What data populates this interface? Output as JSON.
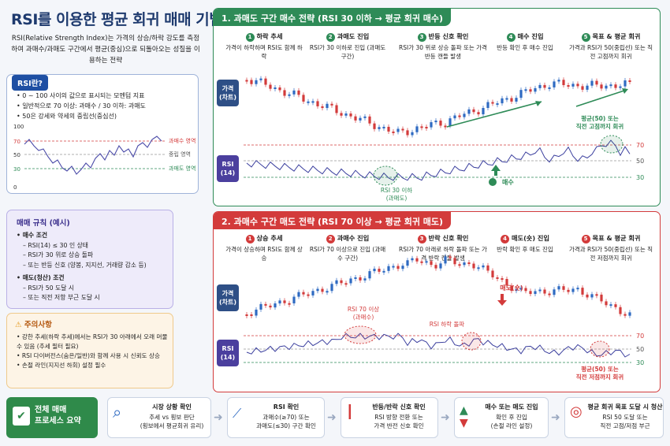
{
  "title": "RSI를 이용한 평균 회귀 매매 기법",
  "subtitle": "RSI(Relative Strength Index)는 가격의 상승/하락 강도를 측정하여 과매수/과매도 구간에서 평균(중심)으로 되돌아오는 성질을 이용하는 전략",
  "rsi_info": {
    "tag": "RSI란?",
    "bullets": [
      "0 ~ 100 사이의 값으로 표시되는 모멘텀 지표",
      "일반적으로 70 이상: 과매수 / 30 이하: 과매도",
      "50은 강세와 약세의 중립선(중심선)"
    ],
    "ticks": [
      "100",
      "70",
      "50",
      "30",
      "0"
    ],
    "zones": [
      "과매수 영역",
      "중립 영역",
      "과매도 영역"
    ]
  },
  "rules": {
    "title": "매매 규칙 (예시)",
    "buy_title": "매수 조건",
    "buy": [
      "RSI(14) ≤ 30 인 상태",
      "RSI가 30 위로 상승 돌파",
      "또는 반등 신호 (양봉, 지지선, 거래량 감소 등)"
    ],
    "sell_title": "매도(청산) 조건",
    "sell": [
      "RSI가 50 도달 시",
      "또는 직전 저항 부근 도달 시"
    ]
  },
  "warnings": {
    "title": "주의사항",
    "items": [
      "강한 추세(하락 추세)에서는 RSI가 30 아래에서 오래 머물 수 있음 (추세 필터 필요)",
      "RSI 다이버전스(숨은/일반)와 함께 사용 시 신뢰도 상승",
      "손절 라인(지지선 하회) 설정 필수"
    ]
  },
  "panel1": {
    "title": "1. 과매도 구간 매수 전략 (RSI 30 이하 → 평균 회귀 매수)",
    "steps": [
      {
        "n": "1",
        "h": "하락 추세",
        "t": "가격이 하락하며 RSI도 함께 하락"
      },
      {
        "n": "2",
        "h": "과매도 진입",
        "t": "RSI가 30 이하로 진입 (과매도 구간)"
      },
      {
        "n": "3",
        "h": "반등 신호 확인",
        "t": "RSI가 30 위로 상승 돌파 또는 가격 반등 캔들 발생"
      },
      {
        "n": "4",
        "h": "매수 진입",
        "t": "반등 확인 후 매수 진입"
      },
      {
        "n": "5",
        "h": "목표 & 평균 회귀",
        "t": "가격과 RSI가 50(중립선) 또는 직전 고점까지 회귀"
      }
    ],
    "price_label": "가격\n(차트)",
    "rsi_label": "RSI\n(14)",
    "levels": [
      "70",
      "50",
      "30"
    ],
    "ann_rsi": "RSI 30 이하\n(과매도)",
    "ann_buy": "매수",
    "ann_target": "평균(50) 또는\n직전 고점까지 회귀"
  },
  "panel2": {
    "title": "2. 과매수 구간 매도 전략 (RSI 70 이상 → 평균 회귀 매도)",
    "steps": [
      {
        "n": "1",
        "h": "상승 추세",
        "t": "가격이 상승하며 RSI도 함께 상승"
      },
      {
        "n": "2",
        "h": "과매수 진입",
        "t": "RSI가 70 이상으로 진입 (과매수 구간)"
      },
      {
        "n": "3",
        "h": "반락 신호 확인",
        "t": "RSI가 70 아래로 하락 돌파 또는 가격 반락 캔들 발생"
      },
      {
        "n": "4",
        "h": "매도(숏) 진입",
        "t": "반락 확인 후 매도 진입"
      },
      {
        "n": "5",
        "h": "목표 & 평균 회귀",
        "t": "가격과 RSI가 50(중립선) 또는 직전 저점까지 회귀"
      }
    ],
    "price_label": "가격\n(차트)",
    "rsi_label": "RSI\n(14)",
    "levels": [
      "70",
      "50",
      "30"
    ],
    "ann_rsi": "RSI 70 이상\n(과매수)",
    "ann_break": "RSI 하락 돌파",
    "ann_sell": "매도(숏)",
    "ann_target": "평균(50) 또는\n직전 저점까지 회귀"
  },
  "summary": {
    "head": "전체 매매\n프로세스 요약",
    "cards": [
      {
        "h": "시장 상황 확인",
        "t": "추세 vs 횡보 판단\n(횡보에서 평균회귀 유리)"
      },
      {
        "h": "RSI 확인",
        "t": "과매수(≥70) 또는\n과매도(≤30) 구간 확인"
      },
      {
        "h": "반등/반락 신호 확인",
        "t": "RSI 방향 전환 또는\n가격 반전 신호 확인"
      },
      {
        "h": "매수 또는 매도 진입",
        "t": "확인 후 진입\n(손절 라인 설정)"
      },
      {
        "h": "평균 회귀 목표 도달 시 청산",
        "t": "RSI 50 도달 또는\n직전 고점/저점 부근"
      }
    ]
  },
  "colors": {
    "green": "#2e8b57",
    "red": "#d33b3b",
    "navy": "#1e3a6e",
    "rsi_line": "#3b3f9e"
  }
}
